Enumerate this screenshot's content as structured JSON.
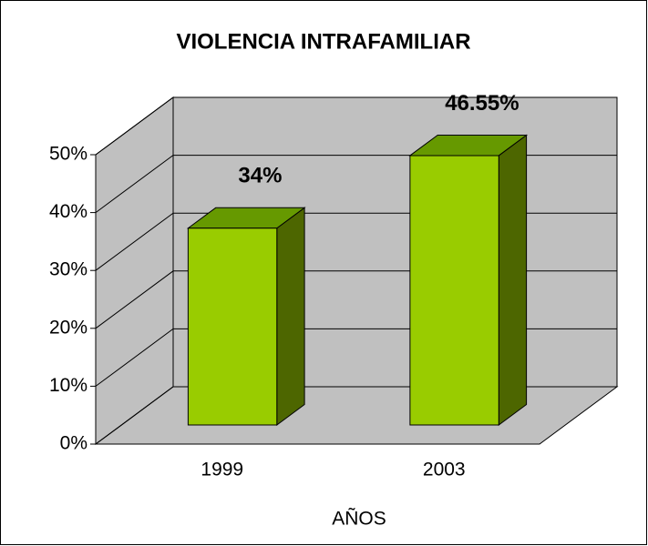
{
  "chart_data": {
    "type": "bar3d",
    "title": "VIOLENCIA INTRAFAMILIAR",
    "categories": [
      "1999",
      "2003"
    ],
    "values": [
      34,
      46.55
    ],
    "value_labels": [
      "34%",
      "46.55%"
    ],
    "color": "#99cc00",
    "x_label": "AÑOS",
    "ylim": [
      0,
      50
    ],
    "yticks": [
      {
        "value": 0,
        "label": "0%"
      },
      {
        "value": 10,
        "label": "10%"
      },
      {
        "value": 20,
        "label": "20%"
      },
      {
        "value": 30,
        "label": "30%"
      },
      {
        "value": 40,
        "label": "40%"
      },
      {
        "value": 50,
        "label": "50%"
      }
    ],
    "grid": true
  }
}
